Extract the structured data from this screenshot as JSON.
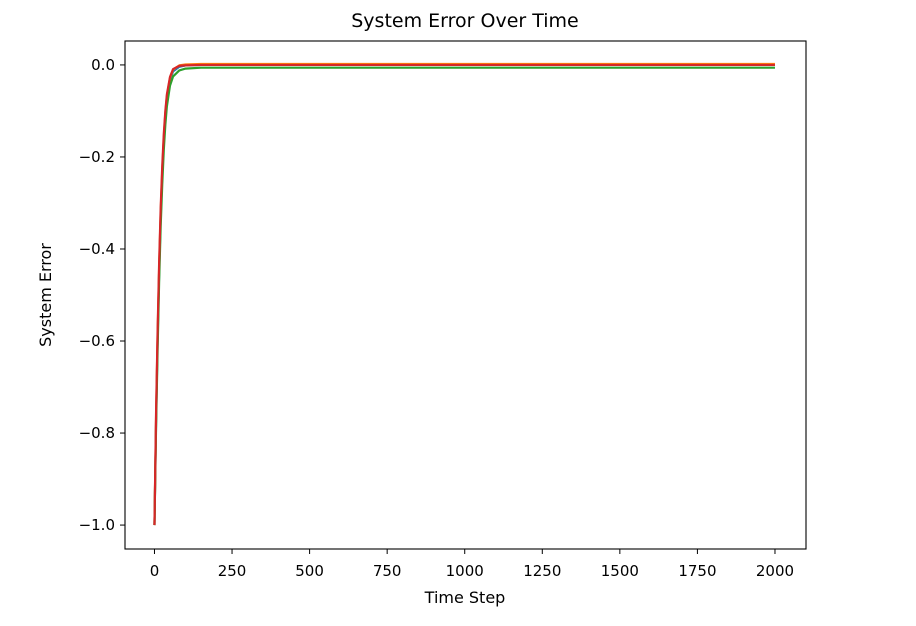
{
  "chart_data": {
    "type": "line",
    "title": "System Error Over Time",
    "xlabel": "Time Step",
    "ylabel": "System Error",
    "xlim": [
      -95,
      2100
    ],
    "ylim": [
      -1.052,
      0.052
    ],
    "xticks": [
      0,
      250,
      500,
      750,
      1000,
      1250,
      1500,
      1750,
      2000
    ],
    "xtick_labels": [
      "0",
      "250",
      "500",
      "750",
      "1000",
      "1250",
      "1500",
      "1750",
      "2000"
    ],
    "yticks": [
      0.0,
      -0.2,
      -0.4,
      -0.6,
      -0.8,
      -1.0
    ],
    "ytick_labels": [
      "0.0",
      "−0.2",
      "−0.4",
      "−0.6",
      "−0.8",
      "−1.0"
    ],
    "grid": false,
    "series": [
      {
        "color": "#1f77b4",
        "x": [
          0,
          5,
          10,
          15,
          20,
          25,
          30,
          35,
          40,
          50,
          60,
          80,
          100,
          150,
          300,
          2000
        ],
        "y": [
          -1.0,
          -0.78,
          -0.6,
          -0.45,
          -0.33,
          -0.24,
          -0.165,
          -0.11,
          -0.072,
          -0.032,
          -0.014,
          -0.004,
          -0.001,
          0.0,
          0.0,
          0.0
        ]
      },
      {
        "color": "#ff7f0e",
        "x": [
          0,
          5,
          10,
          15,
          20,
          25,
          30,
          35,
          40,
          50,
          60,
          80,
          100,
          150,
          300,
          2000
        ],
        "y": [
          -1.0,
          -0.77,
          -0.59,
          -0.44,
          -0.32,
          -0.23,
          -0.16,
          -0.105,
          -0.068,
          -0.028,
          -0.01,
          -0.001,
          0.001,
          0.002,
          0.002,
          0.002
        ]
      },
      {
        "color": "#2ca02c",
        "x": [
          0,
          5,
          10,
          15,
          20,
          25,
          30,
          35,
          40,
          50,
          60,
          80,
          100,
          150,
          300,
          2000
        ],
        "y": [
          -1.0,
          -0.79,
          -0.62,
          -0.47,
          -0.35,
          -0.26,
          -0.185,
          -0.13,
          -0.09,
          -0.045,
          -0.025,
          -0.012,
          -0.008,
          -0.006,
          -0.006,
          -0.006
        ]
      },
      {
        "color": "#d62728",
        "x": [
          0,
          5,
          10,
          15,
          20,
          25,
          30,
          35,
          40,
          50,
          60,
          80,
          100,
          150,
          300,
          2000
        ],
        "y": [
          -1.0,
          -0.76,
          -0.58,
          -0.43,
          -0.31,
          -0.22,
          -0.15,
          -0.1,
          -0.064,
          -0.026,
          -0.009,
          -0.002,
          -0.001,
          0.0,
          0.0,
          0.0
        ]
      }
    ]
  }
}
